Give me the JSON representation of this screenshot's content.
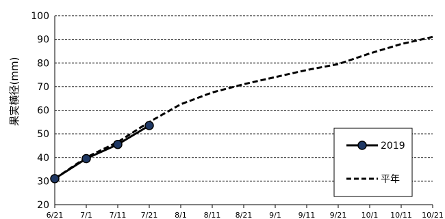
{
  "chart_data": {
    "type": "line",
    "ylabel": "果実横径(mm)",
    "ylim": [
      20,
      100
    ],
    "yticks": [
      "20",
      "30",
      "40",
      "50",
      "60",
      "70",
      "80",
      "90",
      "100"
    ],
    "xticks": [
      "6/21",
      "7/1",
      "7/11",
      "7/21",
      "8/1",
      "8/11",
      "8/21",
      "9/1",
      "9/11",
      "9/21",
      "10/1",
      "10/11",
      "10/21"
    ],
    "grid": "horizontal dashed",
    "legend_position": "bottom-right",
    "series": [
      {
        "name": "2019",
        "style": "solid-with-markers",
        "color": "#000000",
        "marker_color": "#1f3864",
        "x": [
          "6/21",
          "7/1",
          "7/11",
          "7/21"
        ],
        "y": [
          31,
          39.5,
          45.5,
          53.5
        ]
      },
      {
        "name": "平年",
        "style": "dashed",
        "color": "#000000",
        "x": [
          "6/21",
          "7/1",
          "7/11",
          "7/21",
          "8/1",
          "8/11",
          "8/21",
          "9/1",
          "9/11",
          "9/21",
          "10/1",
          "10/11",
          "10/21"
        ],
        "y": [
          31,
          40,
          46.5,
          55,
          62.5,
          67.5,
          71,
          74,
          77,
          79.5,
          84,
          88,
          91
        ]
      }
    ]
  }
}
